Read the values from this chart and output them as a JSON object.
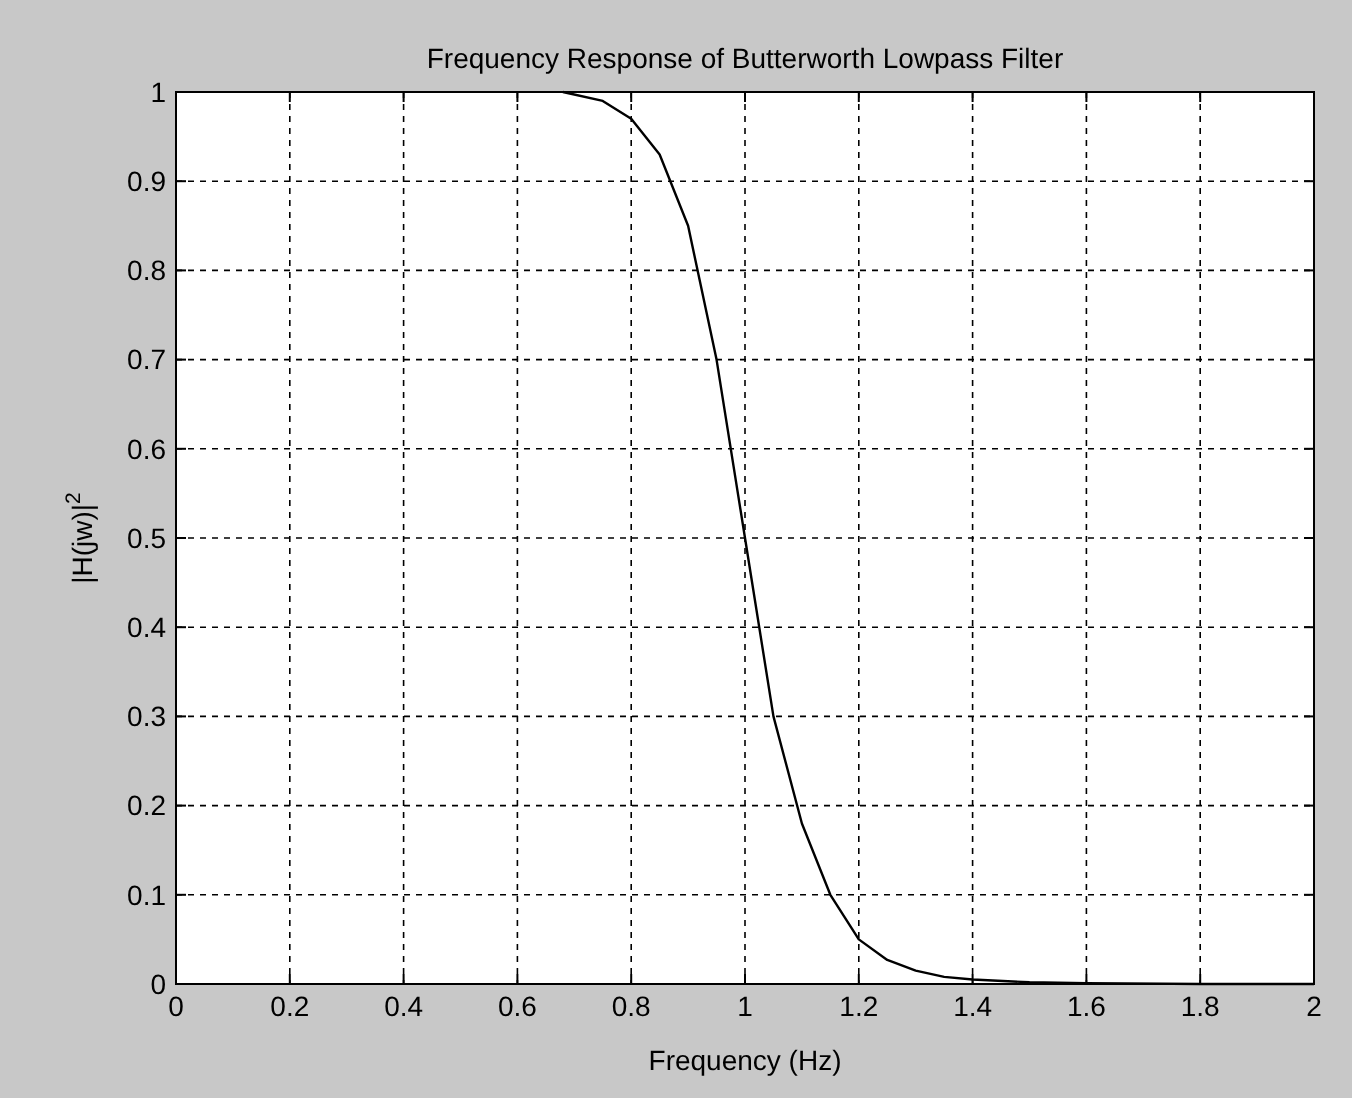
{
  "chart_data": {
    "type": "line",
    "title": "Frequency Response of Butterworth Lowpass Filter",
    "xlabel": "Frequency (Hz)",
    "ylabel": "|H(jw)|$^{2}$",
    "series": [
      {
        "color": "#000000",
        "x": [
          0.68,
          0.75,
          0.8,
          0.85,
          0.9,
          0.95,
          1.0,
          1.05,
          1.1,
          1.15,
          1.2,
          1.25,
          1.3,
          1.35,
          1.4,
          1.5,
          1.6,
          1.8,
          2.0
        ],
        "values": [
          1.0,
          0.99,
          0.97,
          0.93,
          0.85,
          0.7,
          0.5,
          0.3,
          0.18,
          0.1,
          0.05,
          0.027,
          0.015,
          0.008,
          0.005,
          0.002,
          0.001,
          0,
          0
        ]
      }
    ],
    "xlim": [
      0,
      2
    ],
    "xticks": [
      0,
      0.2,
      0.4,
      0.6,
      0.8,
      1,
      1.2,
      1.4,
      1.6,
      1.8,
      2
    ],
    "ylim": [
      0,
      1
    ],
    "yticks": [
      0,
      0.1,
      0.2,
      0.3,
      0.4,
      0.5,
      0.6,
      0.7,
      0.8,
      0.9,
      1
    ],
    "grid": true,
    "line_style": "solid"
  }
}
